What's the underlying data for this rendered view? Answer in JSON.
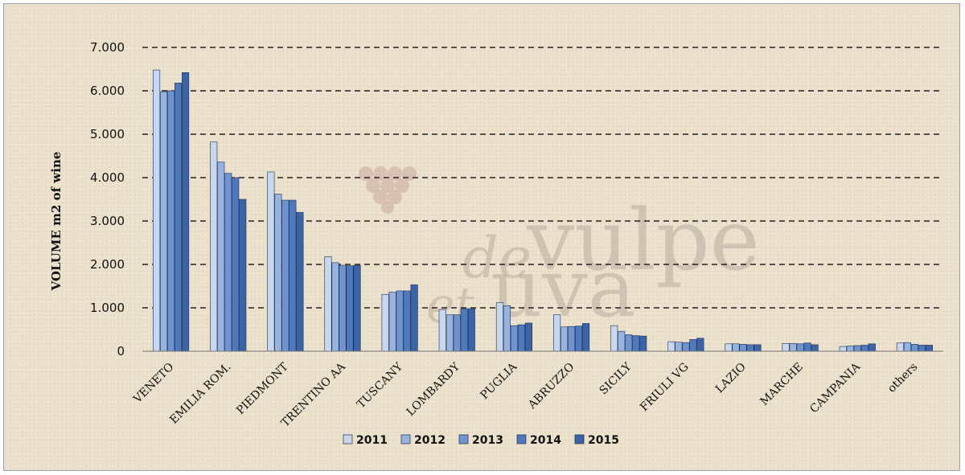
{
  "chart_data": {
    "type": "bar",
    "ylabel": "VOLUME m2 of wine",
    "ylim": [
      0,
      7000
    ],
    "yticks": [
      0,
      1000,
      2000,
      3000,
      4000,
      5000,
      6000,
      7000
    ],
    "ytick_labels": [
      "0",
      "1.000",
      "2.000",
      "3.000",
      "4.000",
      "5.000",
      "6.000",
      "7.000"
    ],
    "grid": true,
    "legend_position": "bottom",
    "categories": [
      "VENETO",
      "EMILIA ROM.",
      "PIEDMONT",
      "TRENTINO AA",
      "TUSCANY",
      "LOMBARDY",
      "PUGLIA",
      "ABRUZZO",
      "SICILY",
      "FRIULI VG",
      "LAZIO",
      "MARCHE",
      "CAMPANIA",
      "others"
    ],
    "series": [
      {
        "name": "2011",
        "color": "#c9d7ee",
        "values": [
          6480,
          4820,
          4130,
          2180,
          1310,
          960,
          1120,
          840,
          590,
          220,
          170,
          180,
          110,
          190
        ]
      },
      {
        "name": "2012",
        "color": "#97b3de",
        "values": [
          5980,
          4360,
          3620,
          2040,
          1360,
          840,
          1050,
          560,
          460,
          210,
          170,
          180,
          120,
          200
        ]
      },
      {
        "name": "2013",
        "color": "#6f93cf",
        "values": [
          6000,
          4100,
          3480,
          1980,
          1390,
          840,
          590,
          570,
          380,
          200,
          160,
          170,
          130,
          160
        ]
      },
      {
        "name": "2014",
        "color": "#4f78bd",
        "values": [
          6180,
          4000,
          3480,
          1970,
          1390,
          980,
          610,
          580,
          360,
          270,
          150,
          190,
          140,
          140
        ]
      },
      {
        "name": "2015",
        "color": "#3c63a5",
        "values": [
          6420,
          3500,
          3200,
          1980,
          1530,
          980,
          650,
          640,
          350,
          300,
          150,
          150,
          170,
          140
        ]
      }
    ]
  },
  "watermark": {
    "word1": "de",
    "word2": "vulpe",
    "word3": "et",
    "word4": "uva"
  }
}
